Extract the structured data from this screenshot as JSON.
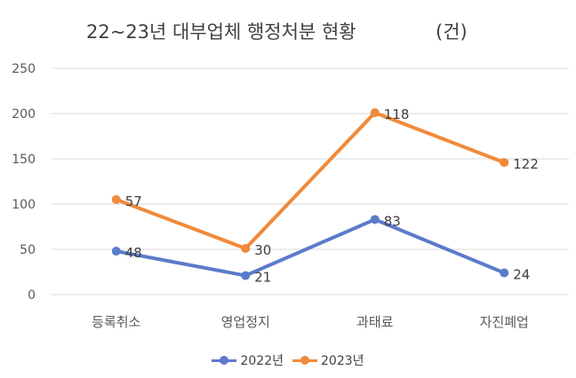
{
  "chart_data": {
    "type": "line",
    "title": "22~23년 대부업체 행정처분 현황",
    "unit": "(건)",
    "categories": [
      "등록취소",
      "영업정지",
      "과태료",
      "자진폐업"
    ],
    "ylim": [
      0,
      250
    ],
    "yticks": [
      0,
      50,
      100,
      150,
      200,
      250
    ],
    "grid": true,
    "legend_position": "bottom",
    "series": [
      {
        "name": "2022년",
        "color": "#5B7BCB",
        "values": [
          48,
          21,
          83,
          24
        ],
        "labels": [
          "48",
          "21",
          "83",
          "24"
        ]
      },
      {
        "name": "2023년",
        "color": "#F08A3A",
        "values": [
          105,
          51,
          201,
          146
        ],
        "labels": [
          "57",
          "30",
          "118",
          "122"
        ]
      }
    ]
  }
}
